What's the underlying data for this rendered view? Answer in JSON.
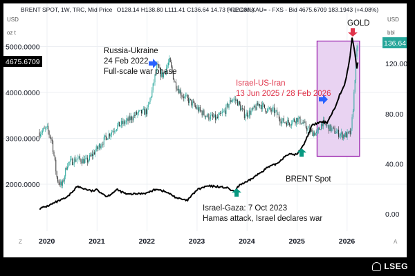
{
  "header": {
    "left_series": "BRENT SPOT, 1W, TRC, Mid Price",
    "left_ohlc": "O128.14 H138.80 L111.41 C136.64 14.73 (+12.08%)",
    "right_series": "PREC.M.XAU= - FXS - Bid 4675.6709 183.1943 (+4.08%)"
  },
  "axis_units": {
    "left": "USD",
    "left2": "oz t",
    "right": "USD",
    "right2": "bbl"
  },
  "price_tags": {
    "gold": "4675.6709",
    "brent": "136.64"
  },
  "colors": {
    "gold_line": "#000000",
    "brent_up": "#26a69a",
    "brent_down": "#333333",
    "box_fill": "#e9d3f2",
    "box_border": "#9c27b0",
    "arrow_blue": "#2962ff",
    "arrow_green": "#089981",
    "arrow_red": "#e0354b"
  },
  "annotations": {
    "russia_line1": "Russia-Ukraine",
    "russia_line2": "24 Feb 2022",
    "russia_line3": "Full-scale war phase",
    "iran_line1": "Israel-US-Iran",
    "iran_line2": "13 Jun 2025 / 28 Feb 2026",
    "gaza_line1": "Israel-Gaza: 7 Oct 2023",
    "gaza_line2": "Hamas attack, Israel declares war",
    "brent_label": "BRENT Spot",
    "gold_label": "GOLD"
  },
  "footer": {
    "brand": "LSEG",
    "left_mark": "Z",
    "right_mark": "A"
  },
  "chart_data": {
    "type": "line",
    "x_ticks": [
      "2020",
      "2021",
      "2022",
      "2023",
      "2024",
      "2025",
      "2026"
    ],
    "left_axis": {
      "ticks": [
        "2000.0000",
        "3000.0000",
        "4000.0000",
        "5000.0000"
      ],
      "values": [
        2000,
        3000,
        4000,
        5000
      ],
      "range": [
        1150,
        5650
      ]
    },
    "right_axis": {
      "ticks": [
        "0.00",
        "40.00",
        "80.00",
        "120.00"
      ],
      "values": [
        0,
        40,
        80,
        120
      ],
      "range": [
        -6,
        162
      ]
    },
    "series": [
      {
        "name": "BRENT SPOT",
        "axis": "right",
        "style": "candlestick",
        "x": [
          2019.85,
          2020.0,
          2020.1,
          2020.2,
          2020.3,
          2020.4,
          2020.6,
          2020.8,
          2021.0,
          2021.2,
          2021.4,
          2021.6,
          2021.8,
          2022.0,
          2022.1,
          2022.2,
          2022.3,
          2022.45,
          2022.55,
          2022.7,
          2022.85,
          2023.0,
          2023.2,
          2023.4,
          2023.55,
          2023.7,
          2023.8,
          2023.95,
          2024.1,
          2024.25,
          2024.4,
          2024.55,
          2024.7,
          2024.85,
          2025.0,
          2025.1,
          2025.25,
          2025.4,
          2025.5,
          2025.6,
          2025.75,
          2025.9,
          2026.0,
          2026.08,
          2026.13,
          2026.18,
          2026.22
        ],
        "y": [
          65,
          68,
          58,
          28,
          22,
          40,
          44,
          42,
          52,
          62,
          70,
          74,
          80,
          82,
          98,
          118,
          110,
          122,
          105,
          95,
          90,
          84,
          78,
          76,
          82,
          92,
          90,
          79,
          82,
          88,
          83,
          82,
          74,
          73,
          76,
          73,
          66,
          64,
          73,
          70,
          66,
          63,
          63,
          65,
          90,
          125,
          136.64
        ]
      },
      {
        "name": "GOLD",
        "axis": "left",
        "style": "line",
        "x": [
          2019.85,
          2020.0,
          2020.2,
          2020.4,
          2020.6,
          2020.75,
          2020.9,
          2021.0,
          2021.2,
          2021.4,
          2021.6,
          2021.8,
          2022.0,
          2022.2,
          2022.4,
          2022.6,
          2022.8,
          2023.0,
          2023.2,
          2023.4,
          2023.6,
          2023.75,
          2023.85,
          2024.0,
          2024.2,
          2024.4,
          2024.6,
          2024.8,
          2025.0,
          2025.15,
          2025.3,
          2025.45,
          2025.6,
          2025.75,
          2025.85,
          2025.95,
          2026.05,
          2026.1,
          2026.15,
          2026.2,
          2026.22
        ],
        "y": [
          1470,
          1520,
          1620,
          1710,
          1950,
          1900,
          1850,
          1880,
          1730,
          1880,
          1780,
          1790,
          1810,
          1900,
          1820,
          1700,
          1640,
          1880,
          1960,
          1950,
          1920,
          1830,
          1990,
          2050,
          2200,
          2360,
          2450,
          2650,
          2650,
          2900,
          3280,
          3350,
          3350,
          3650,
          3950,
          4150,
          4700,
          5200,
          4900,
          4500,
          4675.6709
        ]
      }
    ],
    "shaded_region": {
      "x": [
        2025.4,
        2026.25
      ],
      "y_right": [
        46,
        138
      ]
    }
  }
}
